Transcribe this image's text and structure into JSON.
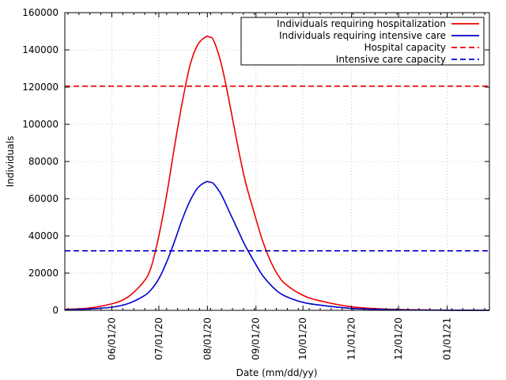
{
  "chart_data": {
    "type": "line",
    "title": "",
    "xlabel": "Date (mm/dd/yy)",
    "ylabel": "Individuals",
    "x_axis_type": "date",
    "xlim": [
      "2020-05-02",
      "2021-01-28"
    ],
    "ylim": [
      0,
      160000
    ],
    "yticks": [
      0,
      20000,
      40000,
      60000,
      80000,
      100000,
      120000,
      140000,
      160000
    ],
    "xticks": [
      "2020-06-01",
      "2020-07-01",
      "2020-08-01",
      "2020-09-01",
      "2020-10-01",
      "2020-11-01",
      "2020-12-01",
      "2021-01-01"
    ],
    "xtick_labels": [
      "06/01/20",
      "07/01/20",
      "08/01/20",
      "09/01/20",
      "10/01/20",
      "11/01/20",
      "12/01/20",
      "01/01/21"
    ],
    "grid": true,
    "legend_position": "top-right",
    "series": [
      {
        "name": "Individuals requiring hospitalization",
        "color": "#ee0000",
        "style": "solid",
        "x": [
          "2020-05-02",
          "2020-05-17",
          "2020-06-01",
          "2020-06-11",
          "2020-06-21",
          "2020-06-26",
          "2020-07-01",
          "2020-07-06",
          "2020-07-11",
          "2020-07-16",
          "2020-07-21",
          "2020-07-26",
          "2020-07-31",
          "2020-08-02",
          "2020-08-05",
          "2020-08-10",
          "2020-08-15",
          "2020-08-20",
          "2020-08-25",
          "2020-08-31",
          "2020-09-05",
          "2020-09-10",
          "2020-09-15",
          "2020-09-20",
          "2020-09-30",
          "2020-10-10",
          "2020-10-31",
          "2020-11-20",
          "2020-12-10",
          "2020-12-31",
          "2021-01-28"
        ],
        "y": [
          500,
          1200,
          3500,
          7000,
          15000,
          23000,
          40000,
          62000,
          88000,
          112000,
          132000,
          143000,
          147000,
          147000,
          145000,
          132000,
          112000,
          90000,
          70000,
          52000,
          38000,
          27000,
          19000,
          14000,
          8500,
          5500,
          2000,
          800,
          300,
          100,
          50
        ]
      },
      {
        "name": "Individuals requiring intensive care",
        "color": "#0000cc",
        "style": "solid",
        "x": [
          "2020-05-02",
          "2020-05-17",
          "2020-06-01",
          "2020-06-11",
          "2020-06-21",
          "2020-06-26",
          "2020-07-01",
          "2020-07-06",
          "2020-07-11",
          "2020-07-16",
          "2020-07-21",
          "2020-07-26",
          "2020-07-31",
          "2020-08-02",
          "2020-08-05",
          "2020-08-10",
          "2020-08-15",
          "2020-08-20",
          "2020-08-25",
          "2020-08-31",
          "2020-09-05",
          "2020-09-10",
          "2020-09-15",
          "2020-09-20",
          "2020-09-30",
          "2020-10-10",
          "2020-10-31",
          "2020-11-20",
          "2020-12-10",
          "2020-12-31",
          "2021-01-28"
        ],
        "y": [
          300,
          700,
          1700,
          3500,
          7500,
          11000,
          17000,
          26000,
          37000,
          49000,
          59000,
          66000,
          69000,
          69000,
          68000,
          62000,
          53000,
          44000,
          35000,
          26000,
          19000,
          14000,
          10000,
          7500,
          4500,
          3000,
          1100,
          450,
          150,
          60,
          30
        ]
      },
      {
        "name": "Hospital capacity",
        "color": "#ee0000",
        "style": "dashed",
        "x": [
          "2020-05-02",
          "2021-01-28"
        ],
        "y": [
          120500,
          120500
        ]
      },
      {
        "name": "Intensive care capacity",
        "color": "#0000cc",
        "style": "dashed",
        "x": [
          "2020-05-02",
          "2021-01-28"
        ],
        "y": [
          32000,
          32000
        ]
      }
    ]
  }
}
